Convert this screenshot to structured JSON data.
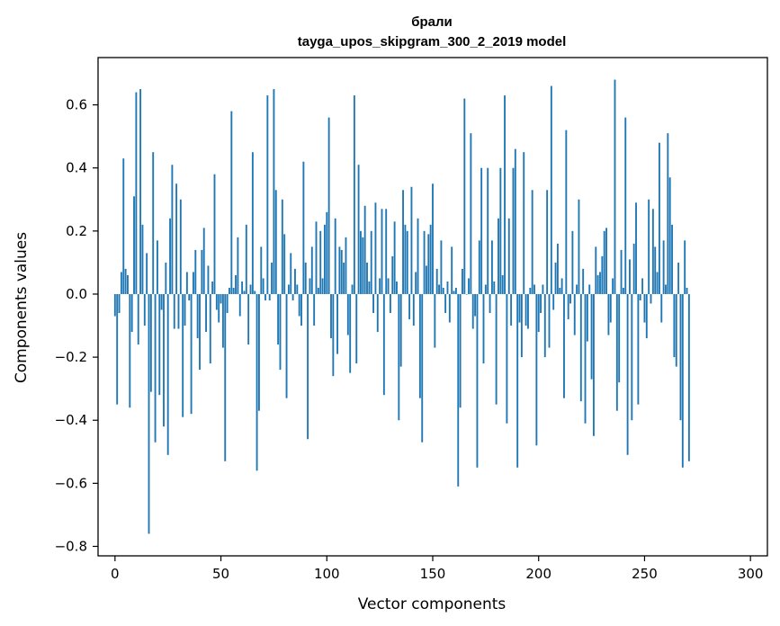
{
  "chart_data": {
    "type": "bar",
    "title": "брали",
    "subtitle": "tayga_upos_skipgram_300_2_2019 model",
    "xlabel": "Vector components",
    "ylabel": "Components values",
    "xlim": [
      -8,
      308
    ],
    "ylim": [
      -0.83,
      0.75
    ],
    "xticks": [
      0,
      50,
      100,
      150,
      200,
      250,
      300
    ],
    "xtick_labels": [
      "0",
      "50",
      "100",
      "150",
      "200",
      "250",
      "300"
    ],
    "yticks": [
      -0.8,
      -0.6,
      -0.4,
      -0.2,
      0.0,
      0.2,
      0.4,
      0.6
    ],
    "ytick_labels": [
      "−0.8",
      "−0.6",
      "−0.4",
      "−0.2",
      "0.0",
      "0.2",
      "0.4",
      "0.6"
    ],
    "bar_color": "#1f77b4",
    "grid": false,
    "values": [
      -0.07,
      -0.35,
      -0.06,
      0.07,
      0.43,
      0.08,
      0.06,
      -0.36,
      -0.12,
      0.31,
      0.64,
      -0.16,
      0.65,
      0.22,
      -0.1,
      0.13,
      -0.76,
      -0.31,
      0.45,
      -0.47,
      0.17,
      -0.32,
      -0.05,
      -0.42,
      0.1,
      -0.51,
      0.24,
      0.41,
      -0.11,
      0.35,
      -0.11,
      0.3,
      -0.39,
      -0.1,
      0.07,
      -0.02,
      -0.38,
      0.07,
      0.14,
      -0.14,
      -0.24,
      0.14,
      0.21,
      -0.12,
      0.09,
      -0.22,
      0.04,
      0.38,
      -0.05,
      -0.09,
      -0.03,
      -0.17,
      -0.53,
      -0.06,
      0.02,
      0.58,
      0.02,
      0.06,
      0.18,
      -0.07,
      0.04,
      0.01,
      0.22,
      -0.16,
      0.03,
      0.45,
      0.01,
      -0.56,
      -0.37,
      0.15,
      0.05,
      -0.02,
      0.63,
      -0.02,
      0.1,
      0.65,
      0.33,
      -0.16,
      -0.24,
      0.3,
      0.19,
      -0.33,
      0.03,
      0.13,
      -0.02,
      0.08,
      0.03,
      -0.07,
      -0.1,
      0.42,
      0.1,
      -0.46,
      0.05,
      0.15,
      -0.1,
      0.23,
      0.02,
      0.2,
      0.05,
      0.22,
      0.26,
      0.56,
      -0.14,
      -0.26,
      0.24,
      -0.19,
      0.15,
      0.14,
      0.1,
      0.18,
      -0.13,
      -0.25,
      0.03,
      0.63,
      -0.22,
      0.41,
      0.2,
      0.18,
      0.28,
      0.1,
      0.04,
      0.2,
      -0.06,
      0.29,
      -0.12,
      0.05,
      0.27,
      -0.32,
      0.27,
      0.05,
      -0.06,
      0.12,
      0.23,
      0.04,
      -0.4,
      -0.23,
      0.33,
      0.22,
      0.2,
      -0.08,
      0.34,
      -0.1,
      0.07,
      0.24,
      -0.33,
      -0.47,
      0.2,
      0.09,
      0.19,
      0.22,
      0.35,
      -0.17,
      0.08,
      0.03,
      0.17,
      0.02,
      -0.06,
      0.04,
      -0.09,
      0.15,
      0.01,
      0.02,
      -0.61,
      -0.36,
      0.08,
      0.62,
      0.0,
      0.05,
      0.51,
      -0.11,
      -0.07,
      -0.55,
      0.17,
      0.4,
      -0.22,
      0.03,
      0.4,
      -0.06,
      0.17,
      0.04,
      -0.35,
      0.24,
      0.4,
      0.06,
      0.63,
      -0.41,
      0.24,
      -0.1,
      0.4,
      0.46,
      -0.55,
      -0.09,
      -0.2,
      0.45,
      -0.1,
      -0.11,
      0.02,
      0.33,
      0.03,
      -0.48,
      -0.12,
      -0.06,
      0.03,
      -0.2,
      0.33,
      -0.17,
      0.66,
      -0.05,
      0.1,
      0.16,
      0.02,
      0.05,
      -0.33,
      0.52,
      -0.08,
      -0.03,
      0.2,
      -0.13,
      0.03,
      0.3,
      -0.34,
      0.08,
      -0.41,
      -0.15,
      0.03,
      -0.27,
      -0.45,
      0.15,
      0.06,
      0.07,
      0.12,
      0.2,
      0.21,
      -0.13,
      -0.09,
      0.05,
      0.68,
      -0.37,
      -0.28,
      0.14,
      0.02,
      0.56,
      -0.51,
      0.11,
      -0.4,
      0.16,
      0.29,
      -0.35,
      -0.02,
      0.05,
      -0.09,
      -0.14,
      0.3,
      -0.03,
      0.27,
      0.15,
      0.07,
      0.48,
      -0.09,
      0.17,
      0.03,
      0.51,
      0.37,
      0.22,
      -0.2,
      -0.23,
      0.1,
      -0.4,
      -0.55,
      0.17,
      0.02,
      -0.53
    ]
  }
}
